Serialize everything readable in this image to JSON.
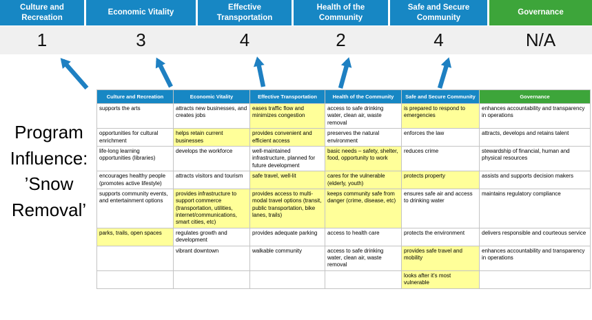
{
  "program_label": "Program\nInfluence:\n’Snow\nRemoval’",
  "colors": {
    "header_blue": "#1787c4",
    "header_green": "#3da53a",
    "highlight_yellow": "#ffff99",
    "arrow_blue": "#1e80c2",
    "score_band_gray": "#f0f0f0"
  },
  "columns": [
    {
      "label": "Culture and Recreation",
      "score": "1"
    },
    {
      "label": "Economic Vitality",
      "score": "3"
    },
    {
      "label": "Effective Transportation",
      "score": "4"
    },
    {
      "label": "Health of the Community",
      "score": "2"
    },
    {
      "label": "Safe and Secure Community",
      "score": "4"
    },
    {
      "label": "Governance",
      "score": "N/A"
    }
  ],
  "table": {
    "headers": [
      "Culture and Recreation",
      "Economic Vitality",
      "Effective Transportation",
      "Health of the Community",
      "Safe and Secure Community",
      "Governance"
    ],
    "rows": [
      [
        {
          "t": "supports the arts",
          "h": false
        },
        {
          "t": "attracts new businesses, and creates jobs",
          "h": false
        },
        {
          "t": "eases traffic flow and minimizes congestion",
          "h": true
        },
        {
          "t": "access to safe drinking water, clean air, waste removal",
          "h": false
        },
        {
          "t": "is prepared to respond to emergencies",
          "h": true
        },
        {
          "t": "enhances accountability and transparency in operations",
          "h": false
        }
      ],
      [
        {
          "t": "opportunities for cultural enrichment",
          "h": false
        },
        {
          "t": "helps retain current businesses",
          "h": true
        },
        {
          "t": "provides convenient and efficient access",
          "h": true
        },
        {
          "t": "preserves the natural environment",
          "h": false
        },
        {
          "t": "enforces the law",
          "h": false
        },
        {
          "t": "attracts, develops and retains talent",
          "h": false
        }
      ],
      [
        {
          "t": "life-long learning opportunities (libraries)",
          "h": false
        },
        {
          "t": "develops the workforce",
          "h": false
        },
        {
          "t": "well-maintained infrastructure, planned for future development",
          "h": false
        },
        {
          "t": "basic needs – safety, shelter, food, opportunity to work",
          "h": true
        },
        {
          "t": "reduces crime",
          "h": false
        },
        {
          "t": "stewardship of financial, human and physical resources",
          "h": false
        }
      ],
      [
        {
          "t": "encourages healthy people (promotes active lifestyle)",
          "h": false
        },
        {
          "t": "attracts visitors and tourism",
          "h": false
        },
        {
          "t": "safe travel, well-lit",
          "h": true
        },
        {
          "t": "cares for the vulnerable (elderly, youth)",
          "h": true
        },
        {
          "t": "protects property",
          "h": true
        },
        {
          "t": "assists and supports decision makers",
          "h": false
        }
      ],
      [
        {
          "t": "supports community events, and entertainment options",
          "h": false
        },
        {
          "t": "provides infrastructure to support commerce (transportation, utilities, internet/communications, smart cities, etc)",
          "h": true
        },
        {
          "t": "provides access to multi-modal travel options (transit, public transportation, bike lanes, trails)",
          "h": true
        },
        {
          "t": "keeps community safe from danger (crime, disease, etc)",
          "h": true
        },
        {
          "t": "ensures safe air and access to drinking water",
          "h": false
        },
        {
          "t": "maintains regulatory compliance",
          "h": false
        }
      ],
      [
        {
          "t": "parks, trails, open spaces",
          "h": true
        },
        {
          "t": "regulates growth and development",
          "h": false
        },
        {
          "t": "provides adequate parking",
          "h": false
        },
        {
          "t": "access to health care",
          "h": false
        },
        {
          "t": "protects the environment",
          "h": false
        },
        {
          "t": "delivers responsible and courteous service",
          "h": false
        }
      ],
      [
        {
          "t": "",
          "h": false
        },
        {
          "t": "vibrant downtown",
          "h": false
        },
        {
          "t": "walkable community",
          "h": false
        },
        {
          "t": "access to safe drinking water, clean air, waste removal",
          "h": false
        },
        {
          "t": "provides safe travel and mobility",
          "h": true
        },
        {
          "t": "enhances accountability and transparency in operations",
          "h": false
        }
      ],
      [
        {
          "t": "",
          "h": false
        },
        {
          "t": "",
          "h": false
        },
        {
          "t": "",
          "h": false
        },
        {
          "t": "",
          "h": false
        },
        {
          "t": "looks after it's most vulnerable",
          "h": true
        },
        {
          "t": "",
          "h": false
        }
      ]
    ]
  }
}
